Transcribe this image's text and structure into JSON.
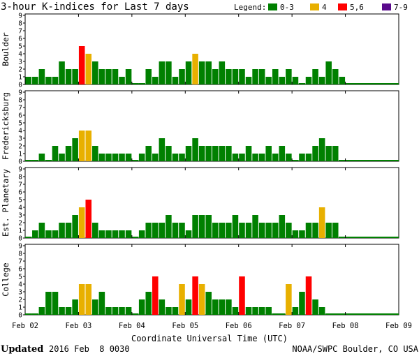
{
  "header": {
    "title": "3-hour K-indices for Last 7 days",
    "legend_label": "Legend:",
    "legend": [
      {
        "label": "0-3",
        "color": "#008000"
      },
      {
        "label": "4",
        "color": "#e8b000"
      },
      {
        "label": "5,6",
        "color": "#ff0000"
      },
      {
        "label": "7-9",
        "color": "#5a0a8c"
      }
    ]
  },
  "footer": {
    "updated_label": "Updated",
    "updated_value": "2016 Feb  8 0030",
    "source": "NOAA/SWPC Boulder, CO USA"
  },
  "chart_data": {
    "type": "bar",
    "xlabel": "Coordinate Universal Time (UTC)",
    "x_tick_labels": [
      "Feb 02",
      "Feb 03",
      "Feb 04",
      "Feb 05",
      "Feb 06",
      "Feb 07",
      "Feb 08",
      "Feb 09"
    ],
    "ylim": [
      0,
      9
    ],
    "y_tick_labels": [
      "0",
      "1",
      "2",
      "3",
      "4",
      "5",
      "6",
      "7",
      "8",
      "9"
    ],
    "color_bins": [
      {
        "range": [
          0,
          3
        ],
        "color": "#008000"
      },
      {
        "range": [
          4,
          4
        ],
        "color": "#e8b000"
      },
      {
        "range": [
          5,
          6
        ],
        "color": "#ff0000"
      },
      {
        "range": [
          7,
          9
        ],
        "color": "#5a0a8c"
      }
    ],
    "bins_per_day": 8,
    "panels": [
      {
        "station": "Boulder",
        "values": [
          1,
          1,
          2,
          1,
          1,
          3,
          2,
          2,
          5,
          4,
          3,
          2,
          2,
          2,
          1,
          2,
          0,
          0,
          2,
          1,
          3,
          3,
          1,
          2,
          3,
          4,
          3,
          3,
          2,
          3,
          2,
          2,
          2,
          1,
          2,
          2,
          1,
          2,
          1,
          2,
          1,
          0,
          1,
          2,
          1,
          3,
          2,
          1,
          null,
          null,
          null,
          null,
          null,
          null,
          null,
          null
        ]
      },
      {
        "station": "Fredericksburg",
        "values": [
          0,
          0,
          1,
          0,
          2,
          1,
          2,
          3,
          4,
          4,
          2,
          1,
          1,
          1,
          1,
          1,
          0,
          1,
          2,
          1,
          3,
          2,
          1,
          1,
          2,
          3,
          2,
          2,
          2,
          2,
          2,
          1,
          1,
          2,
          1,
          1,
          2,
          1,
          2,
          1,
          0,
          1,
          1,
          2,
          3,
          2,
          2,
          null,
          null,
          null,
          null,
          null,
          null,
          null,
          null,
          null
        ]
      },
      {
        "station": "Est. Planetary",
        "values": [
          0,
          1,
          2,
          1,
          1,
          2,
          2,
          3,
          4,
          5,
          2,
          1,
          1,
          1,
          1,
          1,
          0,
          1,
          2,
          2,
          2,
          3,
          2,
          2,
          1,
          3,
          3,
          3,
          2,
          2,
          2,
          3,
          2,
          2,
          3,
          2,
          2,
          2,
          3,
          2,
          1,
          1,
          2,
          2,
          4,
          2,
          2,
          null,
          null,
          null,
          null,
          null,
          null,
          null,
          null,
          null
        ]
      },
      {
        "station": "College",
        "values": [
          0,
          0,
          1,
          3,
          3,
          1,
          1,
          2,
          4,
          4,
          2,
          3,
          1,
          1,
          1,
          1,
          0,
          2,
          3,
          5,
          2,
          1,
          1,
          4,
          2,
          5,
          4,
          3,
          2,
          2,
          2,
          1,
          5,
          1,
          1,
          1,
          1,
          0,
          0,
          4,
          1,
          3,
          5,
          2,
          1,
          null,
          null,
          null,
          null,
          null,
          null,
          null,
          null,
          null,
          null,
          null
        ]
      }
    ]
  }
}
